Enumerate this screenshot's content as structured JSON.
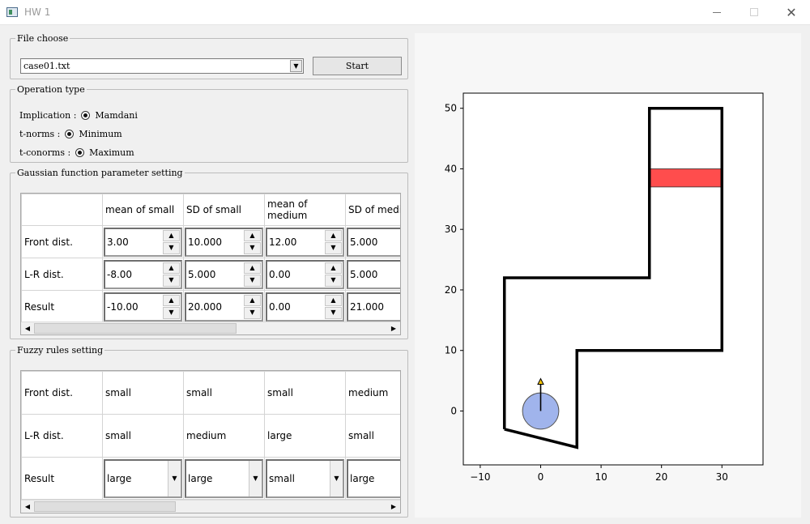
{
  "window": {
    "title": "HW 1"
  },
  "file_choose": {
    "legend": "File choose",
    "selected_file": "case01.txt",
    "start_label": "Start"
  },
  "operation_type": {
    "legend": "Operation type",
    "rows": [
      {
        "label": "Implication :",
        "value": "Mamdani"
      },
      {
        "label": "t-norms :",
        "value": "Minimum"
      },
      {
        "label": "t-conorms :",
        "value": "Maximum"
      }
    ]
  },
  "gaussian": {
    "legend": "Gaussian function parameter setting",
    "columns": [
      "",
      "mean of small",
      "SD of small",
      "mean of\nmedium",
      "SD of medi"
    ],
    "rows": [
      {
        "label": "Front dist.",
        "values": [
          "3.00",
          "10.000",
          "12.00",
          "5.000"
        ]
      },
      {
        "label": "L-R dist.",
        "values": [
          "-8.00",
          "5.000",
          "0.00",
          "5.000"
        ]
      },
      {
        "label": "Result",
        "values": [
          "-10.00",
          "20.000",
          "0.00",
          "21.000"
        ]
      }
    ]
  },
  "fuzzy_rules": {
    "legend": "Fuzzy rules setting",
    "rows": [
      {
        "label": "Front dist.",
        "values": [
          "small",
          "small",
          "small",
          "medium"
        ]
      },
      {
        "label": "L-R dist.",
        "values": [
          "small",
          "medium",
          "large",
          "small"
        ]
      },
      {
        "label": "Result",
        "values": [
          "large",
          "large",
          "small",
          "large"
        ]
      }
    ]
  },
  "track_plot": {
    "x_ticks": [
      "−10",
      "0",
      "10",
      "20",
      "30"
    ],
    "y_ticks": [
      "0",
      "10",
      "20",
      "30",
      "40",
      "50"
    ],
    "colors": {
      "track": "#000000",
      "goal": "#ff4d4d",
      "car": "#a0b4ec",
      "car_edge": "#555555",
      "heading": "#f5c400"
    }
  },
  "chart_data": {
    "type": "line",
    "xlim": [
      -12.8,
      36.8
    ],
    "ylim": [
      -8.9,
      52.5
    ],
    "track": [
      [
        -6,
        -3
      ],
      [
        -6,
        22
      ],
      [
        18,
        22
      ],
      [
        18,
        50
      ],
      [
        30,
        50
      ],
      [
        30,
        10
      ],
      [
        6,
        10
      ],
      [
        6,
        -6
      ],
      [
        -6,
        -3
      ]
    ],
    "goal_area": {
      "x": [
        18,
        30
      ],
      "y": [
        37,
        40
      ]
    },
    "car": {
      "x": 0,
      "y": 0,
      "radius": 3,
      "heading_deg": 90
    }
  }
}
